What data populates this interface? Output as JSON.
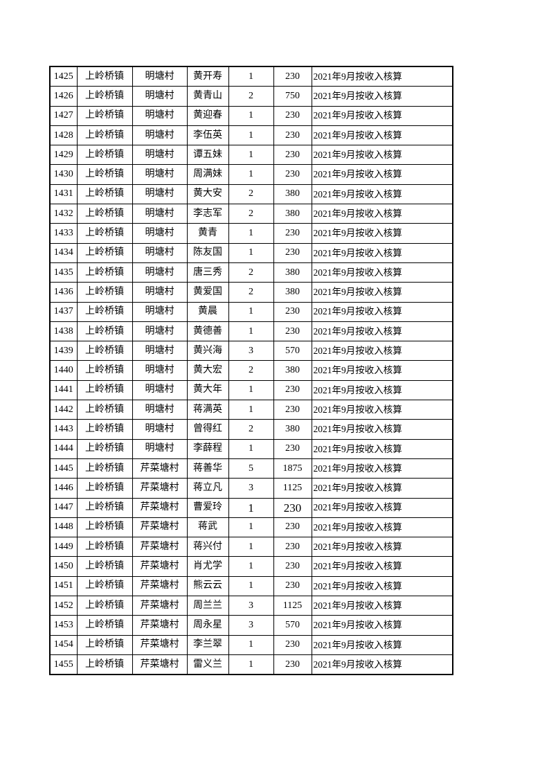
{
  "table": {
    "column_keys": [
      "id",
      "town",
      "village",
      "name",
      "count",
      "amount",
      "note"
    ],
    "emphasized_row_id": "1447",
    "rows": [
      [
        "1425",
        "上岭桥镇",
        "明塘村",
        "黄开寿",
        "1",
        "230",
        "2021年9月按收入核算"
      ],
      [
        "1426",
        "上岭桥镇",
        "明塘村",
        "黄青山",
        "2",
        "750",
        "2021年9月按收入核算"
      ],
      [
        "1427",
        "上岭桥镇",
        "明塘村",
        "黄迎春",
        "1",
        "230",
        "2021年9月按收入核算"
      ],
      [
        "1428",
        "上岭桥镇",
        "明塘村",
        "李伍英",
        "1",
        "230",
        "2021年9月按收入核算"
      ],
      [
        "1429",
        "上岭桥镇",
        "明塘村",
        "谭五妹",
        "1",
        "230",
        "2021年9月按收入核算"
      ],
      [
        "1430",
        "上岭桥镇",
        "明塘村",
        "周满妹",
        "1",
        "230",
        "2021年9月按收入核算"
      ],
      [
        "1431",
        "上岭桥镇",
        "明塘村",
        "黄大安",
        "2",
        "380",
        "2021年9月按收入核算"
      ],
      [
        "1432",
        "上岭桥镇",
        "明塘村",
        "李志军",
        "2",
        "380",
        "2021年9月按收入核算"
      ],
      [
        "1433",
        "上岭桥镇",
        "明塘村",
        "黄青",
        "1",
        "230",
        "2021年9月按收入核算"
      ],
      [
        "1434",
        "上岭桥镇",
        "明塘村",
        "陈友国",
        "1",
        "230",
        "2021年9月按收入核算"
      ],
      [
        "1435",
        "上岭桥镇",
        "明塘村",
        "唐三秀",
        "2",
        "380",
        "2021年9月按收入核算"
      ],
      [
        "1436",
        "上岭桥镇",
        "明塘村",
        "黄爱国",
        "2",
        "380",
        "2021年9月按收入核算"
      ],
      [
        "1437",
        "上岭桥镇",
        "明塘村",
        "黄晨",
        "1",
        "230",
        "2021年9月按收入核算"
      ],
      [
        "1438",
        "上岭桥镇",
        "明塘村",
        "黄德善",
        "1",
        "230",
        "2021年9月按收入核算"
      ],
      [
        "1439",
        "上岭桥镇",
        "明塘村",
        "黄兴海",
        "3",
        "570",
        "2021年9月按收入核算"
      ],
      [
        "1440",
        "上岭桥镇",
        "明塘村",
        "黄大宏",
        "2",
        "380",
        "2021年9月按收入核算"
      ],
      [
        "1441",
        "上岭桥镇",
        "明塘村",
        "黄大年",
        "1",
        "230",
        "2021年9月按收入核算"
      ],
      [
        "1442",
        "上岭桥镇",
        "明塘村",
        "蒋满英",
        "1",
        "230",
        "2021年9月按收入核算"
      ],
      [
        "1443",
        "上岭桥镇",
        "明塘村",
        "曾得红",
        "2",
        "380",
        "2021年9月按收入核算"
      ],
      [
        "1444",
        "上岭桥镇",
        "明塘村",
        "李薛程",
        "1",
        "230",
        "2021年9月按收入核算"
      ],
      [
        "1445",
        "上岭桥镇",
        "芹菜塘村",
        "蒋善华",
        "5",
        "1875",
        "2021年9月按收入核算"
      ],
      [
        "1446",
        "上岭桥镇",
        "芹菜塘村",
        "蒋立凡",
        "3",
        "1125",
        "2021年9月按收入核算"
      ],
      [
        "1447",
        "上岭桥镇",
        "芹菜塘村",
        "曹爱玲",
        "1",
        "230",
        "2021年9月按收入核算"
      ],
      [
        "1448",
        "上岭桥镇",
        "芹菜塘村",
        "蒋武",
        "1",
        "230",
        "2021年9月按收入核算"
      ],
      [
        "1449",
        "上岭桥镇",
        "芹菜塘村",
        "蒋兴付",
        "1",
        "230",
        "2021年9月按收入核算"
      ],
      [
        "1450",
        "上岭桥镇",
        "芹菜塘村",
        "肖尤学",
        "1",
        "230",
        "2021年9月按收入核算"
      ],
      [
        "1451",
        "上岭桥镇",
        "芹菜塘村",
        "熊云云",
        "1",
        "230",
        "2021年9月按收入核算"
      ],
      [
        "1452",
        "上岭桥镇",
        "芹菜塘村",
        "周兰兰",
        "3",
        "1125",
        "2021年9月按收入核算"
      ],
      [
        "1453",
        "上岭桥镇",
        "芹菜塘村",
        "周永星",
        "3",
        "570",
        "2021年9月按收入核算"
      ],
      [
        "1454",
        "上岭桥镇",
        "芹菜塘村",
        "李兰翠",
        "1",
        "230",
        "2021年9月按收入核算"
      ],
      [
        "1455",
        "上岭桥镇",
        "芹菜塘村",
        "雷义兰",
        "1",
        "230",
        "2021年9月按收入核算"
      ]
    ]
  }
}
